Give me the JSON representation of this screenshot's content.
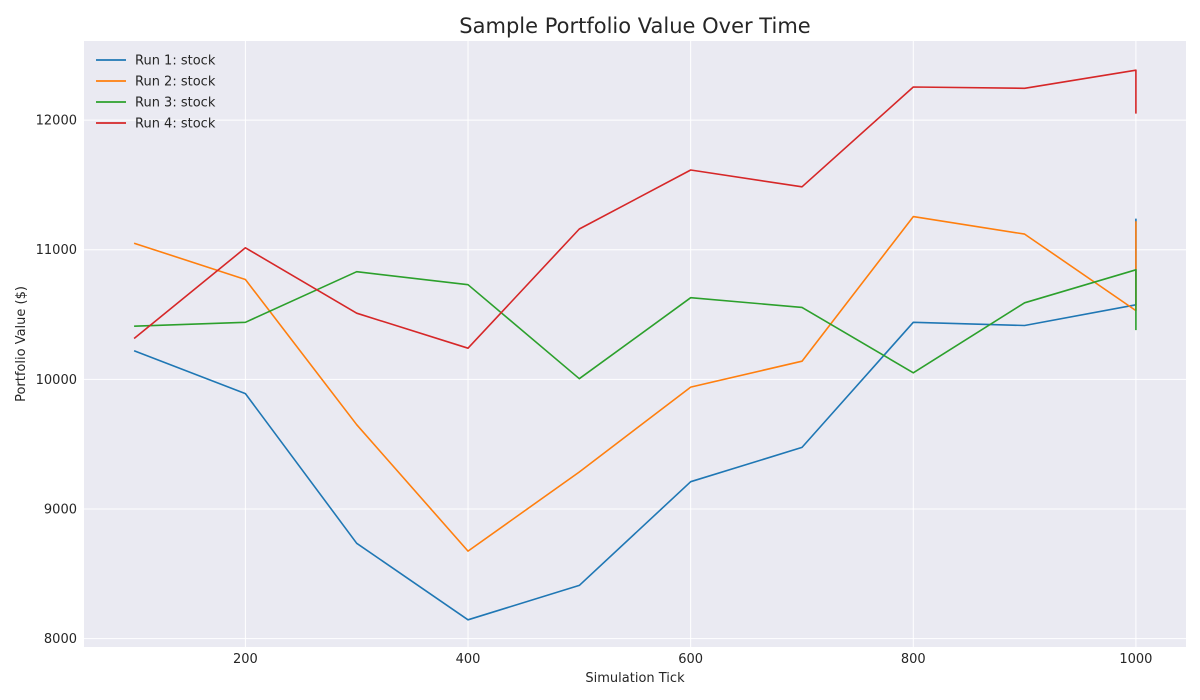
{
  "chart_data": {
    "type": "line",
    "title": "Sample Portfolio Value Over Time",
    "xlabel": "Simulation Tick",
    "ylabel": "Portfolio Value ($)",
    "xlim": [
      55,
      1045
    ],
    "ylim": [
      7935,
      12610
    ],
    "xticks": [
      200,
      400,
      600,
      800,
      1000
    ],
    "yticks": [
      8000,
      9000,
      10000,
      11000,
      12000
    ],
    "grid": true,
    "legend_position": "top-left",
    "background_color": "#eaeaf2",
    "grid_color": "#ffffff",
    "series": [
      {
        "name": "Run 1: stock",
        "color": "#1f77b4",
        "x": [
          100,
          200,
          300,
          400,
          500,
          600,
          700,
          800,
          900,
          1000,
          1000
        ],
        "y": [
          10220,
          9890,
          8735,
          8145,
          8410,
          9210,
          9475,
          10440,
          10415,
          10575,
          11240
        ]
      },
      {
        "name": "Run 2: stock",
        "color": "#ff7f0e",
        "x": [
          100,
          200,
          300,
          400,
          500,
          600,
          700,
          800,
          900,
          1000,
          1000
        ],
        "y": [
          11050,
          10770,
          9650,
          8675,
          9285,
          9940,
          10140,
          11255,
          11120,
          10530,
          11220
        ]
      },
      {
        "name": "Run 3: stock",
        "color": "#2ca02c",
        "x": [
          100,
          200,
          300,
          400,
          500,
          600,
          700,
          800,
          900,
          1000,
          1000
        ],
        "y": [
          10410,
          10440,
          10830,
          10730,
          10005,
          10630,
          10555,
          10050,
          10590,
          10845,
          10380
        ]
      },
      {
        "name": "Run 4: stock",
        "color": "#d62728",
        "x": [
          100,
          200,
          300,
          400,
          500,
          600,
          700,
          800,
          900,
          1000,
          1000
        ],
        "y": [
          10315,
          11015,
          10510,
          10240,
          11160,
          11615,
          11485,
          12255,
          12245,
          12385,
          12050
        ]
      }
    ]
  }
}
